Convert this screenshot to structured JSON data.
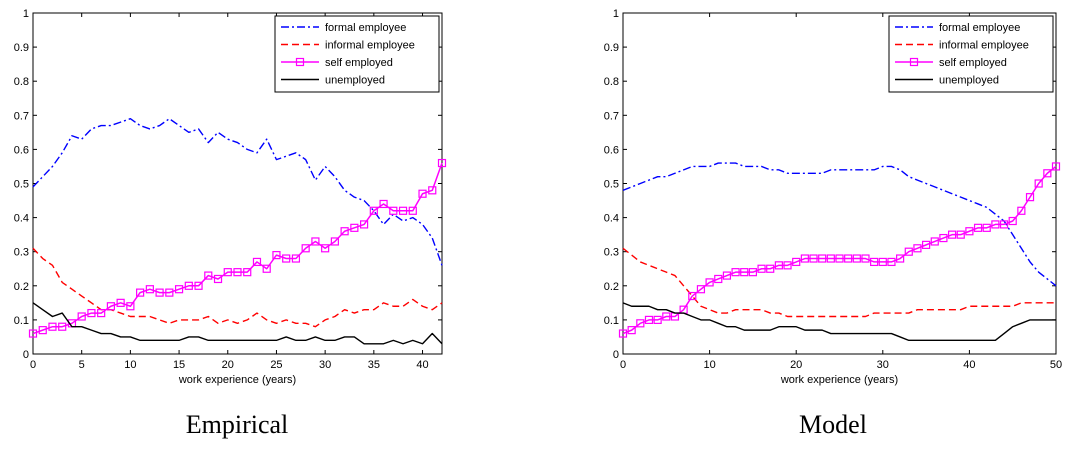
{
  "chart_data": [
    {
      "type": "line",
      "title": "",
      "caption": "Empirical",
      "xlabel": "work experience (years)",
      "ylabel": "",
      "xlim": [
        0,
        42
      ],
      "ylim": [
        0,
        1
      ],
      "xticks": [
        "0",
        "5",
        "10",
        "15",
        "20",
        "25",
        "30",
        "35",
        "40"
      ],
      "yticks": [
        "0",
        "0.1",
        "0.2",
        "0.3",
        "0.4",
        "0.5",
        "0.6",
        "0.7",
        "0.8",
        "0.9",
        "1"
      ],
      "grid": false,
      "legend_position": "top-right",
      "x": [
        0,
        1,
        2,
        3,
        4,
        5,
        6,
        7,
        8,
        9,
        10,
        11,
        12,
        13,
        14,
        15,
        16,
        17,
        18,
        19,
        20,
        21,
        22,
        23,
        24,
        25,
        26,
        27,
        28,
        29,
        30,
        31,
        32,
        33,
        34,
        35,
        36,
        37,
        38,
        39,
        40,
        41,
        42
      ],
      "series": [
        {
          "name": "formal employee",
          "color": "#0000ff",
          "style": "dash-dot",
          "values": [
            0.49,
            0.52,
            0.55,
            0.59,
            0.64,
            0.63,
            0.66,
            0.67,
            0.67,
            0.68,
            0.69,
            0.67,
            0.66,
            0.67,
            0.69,
            0.67,
            0.65,
            0.66,
            0.62,
            0.65,
            0.63,
            0.62,
            0.6,
            0.59,
            0.63,
            0.57,
            0.58,
            0.59,
            0.57,
            0.51,
            0.55,
            0.52,
            0.48,
            0.46,
            0.45,
            0.42,
            0.38,
            0.41,
            0.39,
            0.4,
            0.38,
            0.34,
            0.26
          ]
        },
        {
          "name": "informal employee",
          "color": "#ff0000",
          "style": "dashed",
          "values": [
            0.31,
            0.28,
            0.26,
            0.21,
            0.19,
            0.17,
            0.15,
            0.13,
            0.13,
            0.12,
            0.11,
            0.11,
            0.11,
            0.1,
            0.09,
            0.1,
            0.1,
            0.1,
            0.11,
            0.09,
            0.1,
            0.09,
            0.1,
            0.12,
            0.1,
            0.09,
            0.1,
            0.09,
            0.09,
            0.08,
            0.1,
            0.11,
            0.13,
            0.12,
            0.13,
            0.13,
            0.15,
            0.14,
            0.14,
            0.16,
            0.14,
            0.13,
            0.15
          ]
        },
        {
          "name": "self employed",
          "color": "#ff00ff",
          "style": "solid-square-markers",
          "values": [
            0.06,
            0.07,
            0.08,
            0.08,
            0.09,
            0.11,
            0.12,
            0.12,
            0.14,
            0.15,
            0.14,
            0.18,
            0.19,
            0.18,
            0.18,
            0.19,
            0.2,
            0.2,
            0.23,
            0.22,
            0.24,
            0.24,
            0.24,
            0.27,
            0.25,
            0.29,
            0.28,
            0.28,
            0.31,
            0.33,
            0.31,
            0.33,
            0.36,
            0.37,
            0.38,
            0.42,
            0.44,
            0.42,
            0.42,
            0.42,
            0.47,
            0.48,
            0.56
          ]
        },
        {
          "name": "unemployed",
          "color": "#000000",
          "style": "solid",
          "values": [
            0.15,
            0.13,
            0.11,
            0.12,
            0.08,
            0.08,
            0.07,
            0.06,
            0.06,
            0.05,
            0.05,
            0.04,
            0.04,
            0.04,
            0.04,
            0.04,
            0.05,
            0.05,
            0.04,
            0.04,
            0.04,
            0.04,
            0.04,
            0.04,
            0.04,
            0.04,
            0.05,
            0.04,
            0.04,
            0.05,
            0.04,
            0.04,
            0.05,
            0.05,
            0.03,
            0.03,
            0.03,
            0.04,
            0.03,
            0.04,
            0.03,
            0.06,
            0.03
          ]
        }
      ]
    },
    {
      "type": "line",
      "title": "",
      "caption": "Model",
      "xlabel": "work experience (years)",
      "ylabel": "",
      "xlim": [
        0,
        50
      ],
      "ylim": [
        0,
        1
      ],
      "xticks": [
        "0",
        "10",
        "20",
        "30",
        "40",
        "50"
      ],
      "yticks": [
        "0",
        "0.1",
        "0.2",
        "0.3",
        "0.4",
        "0.5",
        "0.6",
        "0.7",
        "0.8",
        "0.9",
        "1"
      ],
      "grid": false,
      "legend_position": "top-right",
      "x": [
        0,
        1,
        2,
        3,
        4,
        5,
        6,
        7,
        8,
        9,
        10,
        11,
        12,
        13,
        14,
        15,
        16,
        17,
        18,
        19,
        20,
        21,
        22,
        23,
        24,
        25,
        26,
        27,
        28,
        29,
        30,
        31,
        32,
        33,
        34,
        35,
        36,
        37,
        38,
        39,
        40,
        41,
        42,
        43,
        44,
        45,
        46,
        47,
        48,
        49,
        50
      ],
      "series": [
        {
          "name": "formal employee",
          "color": "#0000ff",
          "style": "dash-dot",
          "values": [
            0.48,
            0.49,
            0.5,
            0.51,
            0.52,
            0.52,
            0.53,
            0.54,
            0.55,
            0.55,
            0.55,
            0.56,
            0.56,
            0.56,
            0.55,
            0.55,
            0.55,
            0.54,
            0.54,
            0.53,
            0.53,
            0.53,
            0.53,
            0.53,
            0.54,
            0.54,
            0.54,
            0.54,
            0.54,
            0.54,
            0.55,
            0.55,
            0.54,
            0.52,
            0.51,
            0.5,
            0.49,
            0.48,
            0.47,
            0.46,
            0.45,
            0.44,
            0.43,
            0.41,
            0.39,
            0.35,
            0.31,
            0.27,
            0.24,
            0.22,
            0.2
          ]
        },
        {
          "name": "informal employee",
          "color": "#ff0000",
          "style": "dashed",
          "values": [
            0.31,
            0.29,
            0.27,
            0.26,
            0.25,
            0.24,
            0.23,
            0.2,
            0.17,
            0.14,
            0.13,
            0.12,
            0.12,
            0.13,
            0.13,
            0.13,
            0.13,
            0.12,
            0.12,
            0.11,
            0.11,
            0.11,
            0.11,
            0.11,
            0.11,
            0.11,
            0.11,
            0.11,
            0.11,
            0.12,
            0.12,
            0.12,
            0.12,
            0.12,
            0.13,
            0.13,
            0.13,
            0.13,
            0.13,
            0.13,
            0.14,
            0.14,
            0.14,
            0.14,
            0.14,
            0.14,
            0.15,
            0.15,
            0.15,
            0.15,
            0.15
          ]
        },
        {
          "name": "self employed",
          "color": "#ff00ff",
          "style": "solid-square-markers",
          "values": [
            0.06,
            0.07,
            0.09,
            0.1,
            0.1,
            0.11,
            0.11,
            0.13,
            0.17,
            0.19,
            0.21,
            0.22,
            0.23,
            0.24,
            0.24,
            0.24,
            0.25,
            0.25,
            0.26,
            0.26,
            0.27,
            0.28,
            0.28,
            0.28,
            0.28,
            0.28,
            0.28,
            0.28,
            0.28,
            0.27,
            0.27,
            0.27,
            0.28,
            0.3,
            0.31,
            0.32,
            0.33,
            0.34,
            0.35,
            0.35,
            0.36,
            0.37,
            0.37,
            0.38,
            0.38,
            0.39,
            0.42,
            0.46,
            0.5,
            0.53,
            0.55
          ]
        },
        {
          "name": "unemployed",
          "color": "#000000",
          "style": "solid",
          "values": [
            0.15,
            0.14,
            0.14,
            0.14,
            0.13,
            0.13,
            0.12,
            0.12,
            0.11,
            0.1,
            0.1,
            0.09,
            0.08,
            0.08,
            0.07,
            0.07,
            0.07,
            0.07,
            0.08,
            0.08,
            0.08,
            0.07,
            0.07,
            0.07,
            0.06,
            0.06,
            0.06,
            0.06,
            0.06,
            0.06,
            0.06,
            0.06,
            0.05,
            0.04,
            0.04,
            0.04,
            0.04,
            0.04,
            0.04,
            0.04,
            0.04,
            0.04,
            0.04,
            0.04,
            0.06,
            0.08,
            0.09,
            0.1,
            0.1,
            0.1,
            0.1
          ]
        }
      ]
    }
  ]
}
